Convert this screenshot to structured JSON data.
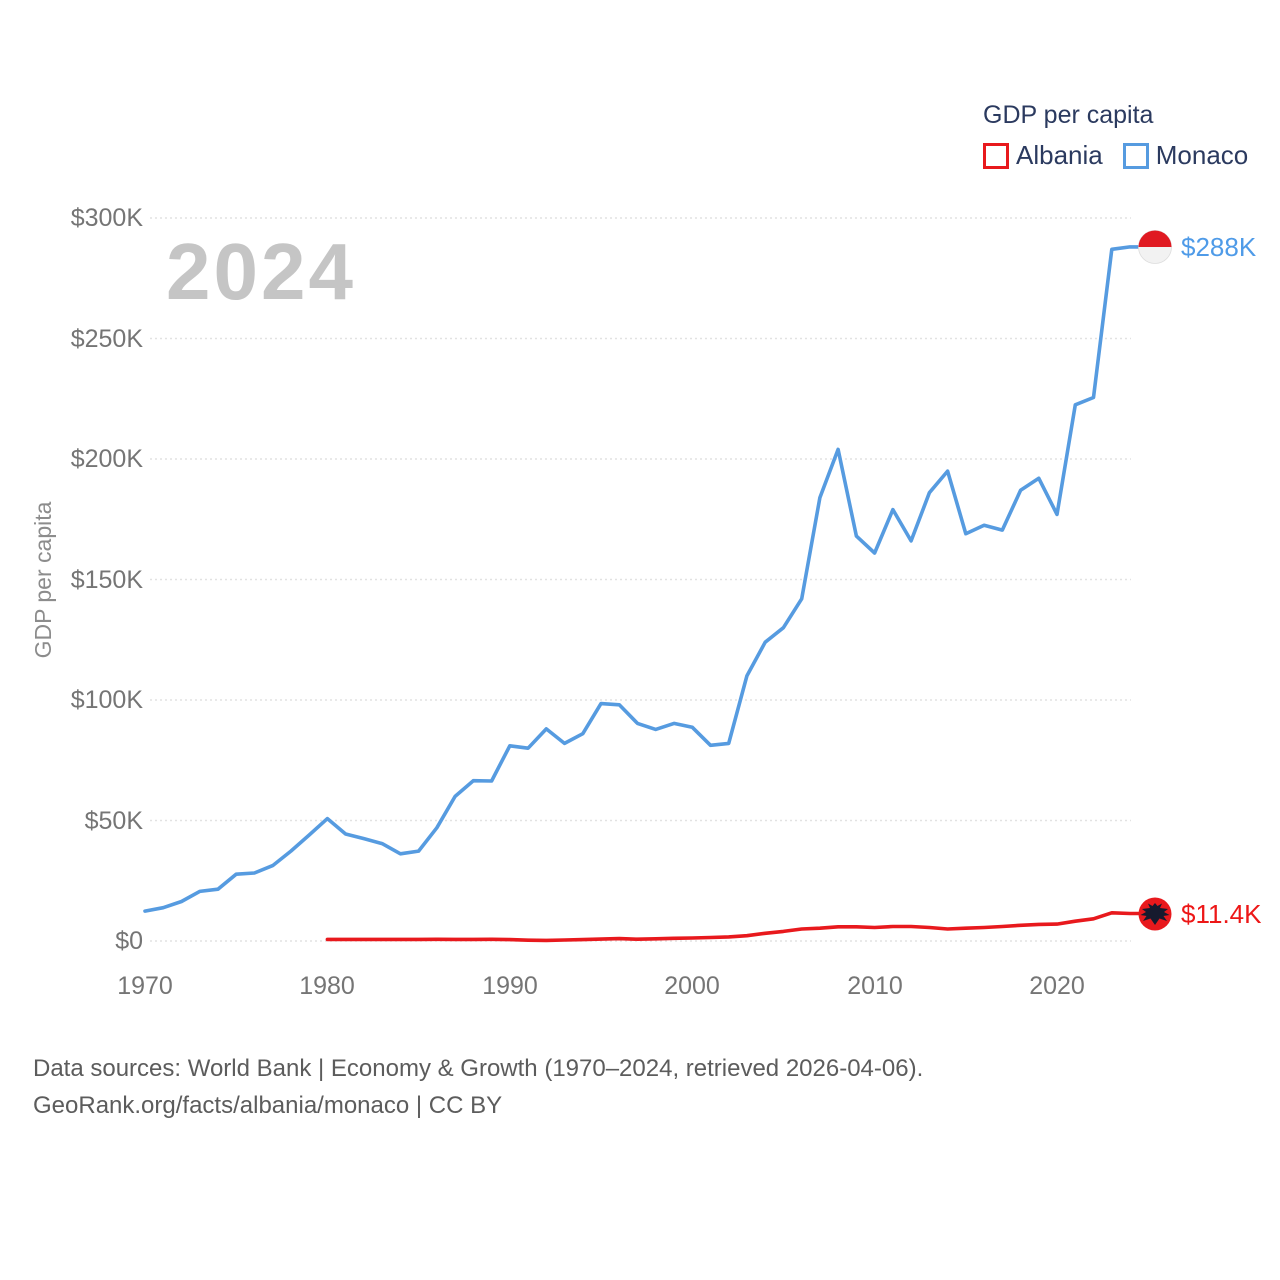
{
  "legend": {
    "title": "GDP per capita",
    "items": [
      {
        "label": "Albania",
        "color": "#e8191d"
      },
      {
        "label": "Monaco",
        "color": "#569be0"
      }
    ]
  },
  "watermark_year": "2024",
  "y_axis": {
    "title": "GDP per capita",
    "ticks": [
      "$300K",
      "$250K",
      "$200K",
      "$150K",
      "$100K",
      "$50K",
      "$0"
    ]
  },
  "x_axis": {
    "ticks": [
      "1970",
      "1980",
      "1990",
      "2000",
      "2010",
      "2020"
    ]
  },
  "footer": {
    "line1": "Data sources: World Bank | Economy & Growth (1970–2024, retrieved 2026-04-06).",
    "line2": "GeoRank.org/facts/albania/monaco | CC BY"
  },
  "chart_data": {
    "type": "line",
    "title": "GDP per capita",
    "ylabel": "GDP per capita",
    "unit": "thousand USD per person",
    "x_range": [
      1970,
      2024
    ],
    "y_range": [
      0,
      300
    ],
    "y_tick_step": 50,
    "grid": true,
    "legend_position": "top-right",
    "series": [
      {
        "name": "Monaco",
        "color": "#569be0",
        "end_label": "$288K",
        "flag": "monaco-flag",
        "years": [
          1970,
          1971,
          1972,
          1973,
          1974,
          1975,
          1976,
          1977,
          1978,
          1979,
          1980,
          1981,
          1982,
          1983,
          1984,
          1985,
          1986,
          1987,
          1988,
          1989,
          1990,
          1991,
          1992,
          1993,
          1994,
          1995,
          1996,
          1997,
          1998,
          1999,
          2000,
          2001,
          2002,
          2003,
          2004,
          2005,
          2006,
          2007,
          2008,
          2009,
          2010,
          2011,
          2012,
          2013,
          2014,
          2015,
          2016,
          2017,
          2018,
          2019,
          2020,
          2021,
          2022,
          2023,
          2024
        ],
        "values": [
          12.4,
          13.8,
          16.4,
          20.6,
          21.5,
          27.7,
          28.2,
          31.3,
          37.3,
          44,
          50.8,
          44.4,
          42.5,
          40.4,
          36.2,
          37.3,
          47,
          60,
          66.5,
          66.4,
          81,
          80,
          88,
          82,
          86,
          98.5,
          98,
          90.3,
          87.8,
          90.3,
          88.7,
          81.2,
          82,
          110,
          124,
          130,
          142,
          184,
          204,
          168,
          161,
          179,
          166,
          186,
          195,
          169,
          172.5,
          170.5,
          187,
          192,
          177,
          222.5,
          225.5,
          287,
          288
        ]
      },
      {
        "name": "Albania",
        "color": "#e8191d",
        "end_label": "$11.4K",
        "flag": "albania-flag",
        "years": [
          1980,
          1981,
          1982,
          1983,
          1984,
          1985,
          1986,
          1987,
          1988,
          1989,
          1990,
          1991,
          1992,
          1993,
          1994,
          1995,
          1996,
          1997,
          1998,
          1999,
          2000,
          2001,
          2002,
          2003,
          2004,
          2005,
          2006,
          2007,
          2008,
          2009,
          2010,
          2011,
          2012,
          2013,
          2014,
          2015,
          2016,
          2017,
          2018,
          2019,
          2020,
          2021,
          2022,
          2023,
          2024
        ],
        "values": [
          0.65,
          0.66,
          0.66,
          0.65,
          0.66,
          0.67,
          0.7,
          0.68,
          0.65,
          0.7,
          0.6,
          0.35,
          0.25,
          0.4,
          0.6,
          0.8,
          1,
          0.75,
          0.9,
          1.1,
          1.25,
          1.45,
          1.7,
          2.2,
          3.2,
          4,
          5,
          5.3,
          5.9,
          5.9,
          5.6,
          6,
          6,
          5.6,
          5,
          5.3,
          5.6,
          6,
          6.5,
          6.9,
          7,
          8.2,
          9.2,
          11.7,
          11.4
        ]
      }
    ]
  }
}
